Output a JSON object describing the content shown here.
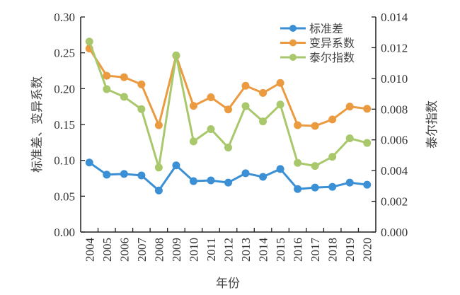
{
  "chart_data": {
    "type": "line",
    "title": "",
    "xlabel": "年份",
    "ylabel_left": "标准差、变异系数",
    "ylabel_right": "泰尔指数",
    "x": [
      "2004",
      "2005",
      "2006",
      "2007",
      "2008",
      "2009",
      "2010",
      "2011",
      "2012",
      "2013",
      "2014",
      "2015",
      "2016",
      "2017",
      "2018",
      "2019",
      "2020"
    ],
    "ylim_left": [
      0,
      0.3
    ],
    "ylim_right": [
      0,
      0.014
    ],
    "yticks_left": [
      "0.00",
      "0.05",
      "0.10",
      "0.15",
      "0.20",
      "0.25",
      "0.30"
    ],
    "yticks_right": [
      "0.000",
      "0.002",
      "0.004",
      "0.006",
      "0.008",
      "0.010",
      "0.012",
      "0.014"
    ],
    "grid": false,
    "legend_position": "top-right",
    "series": [
      {
        "name": "标准差",
        "axis": "left",
        "color": "#3b8fd4",
        "values": [
          0.097,
          0.08,
          0.081,
          0.079,
          0.058,
          0.093,
          0.071,
          0.072,
          0.069,
          0.082,
          0.077,
          0.088,
          0.06,
          0.062,
          0.063,
          0.069,
          0.066
        ]
      },
      {
        "name": "变异系数",
        "axis": "left",
        "color": "#ec9a40",
        "values": [
          0.256,
          0.218,
          0.216,
          0.206,
          0.149,
          0.246,
          0.176,
          0.188,
          0.171,
          0.204,
          0.194,
          0.208,
          0.149,
          0.148,
          0.157,
          0.175,
          0.172
        ]
      },
      {
        "name": "泰尔指数",
        "axis": "right",
        "color": "#a9c76b",
        "values": [
          0.0124,
          0.0093,
          0.0088,
          0.008,
          0.0042,
          0.0115,
          0.0059,
          0.0067,
          0.0055,
          0.0082,
          0.0072,
          0.0083,
          0.0045,
          0.0043,
          0.0049,
          0.0061,
          0.0058
        ]
      }
    ]
  }
}
